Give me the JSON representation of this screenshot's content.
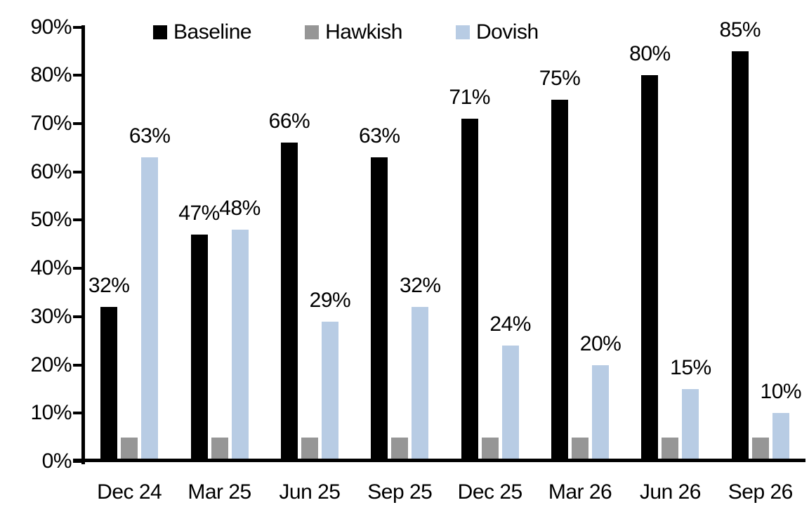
{
  "chart_data": {
    "type": "bar",
    "title": "",
    "xlabel": "",
    "ylabel": "",
    "categories": [
      "Dec 24",
      "Mar 25",
      "Jun 25",
      "Sep 25",
      "Dec 25",
      "Mar 26",
      "Jun 26",
      "Sep 26"
    ],
    "series": [
      {
        "name": "Baseline",
        "color": "#000000",
        "values": [
          32,
          47,
          66,
          63,
          71,
          75,
          80,
          85
        ],
        "data_labels": [
          "32%",
          "47%",
          "66%",
          "63%",
          "71%",
          "75%",
          "80%",
          "85%"
        ]
      },
      {
        "name": "Hawkish",
        "color": "#969696",
        "values": [
          5,
          5,
          5,
          5,
          5,
          5,
          5,
          5
        ],
        "data_labels": [
          "",
          "",
          "",
          "",
          "",
          "",
          "",
          ""
        ]
      },
      {
        "name": "Dovish",
        "color": "#B8CCE4",
        "values": [
          63,
          48,
          29,
          32,
          24,
          20,
          15,
          10
        ],
        "data_labels": [
          "63%",
          "48%",
          "29%",
          "32%",
          "24%",
          "20%",
          "15%",
          "10%"
        ]
      }
    ],
    "ylim": [
      0,
      90
    ],
    "ytick_step": 10,
    "ytick_labels": [
      "0%",
      "10%",
      "20%",
      "30%",
      "40%",
      "50%",
      "60%",
      "70%",
      "80%",
      "90%"
    ],
    "grid": false,
    "legend_position": "top",
    "plot_background": "#FFFFFF",
    "axis_color": "#000000",
    "text_color": "#000000"
  }
}
